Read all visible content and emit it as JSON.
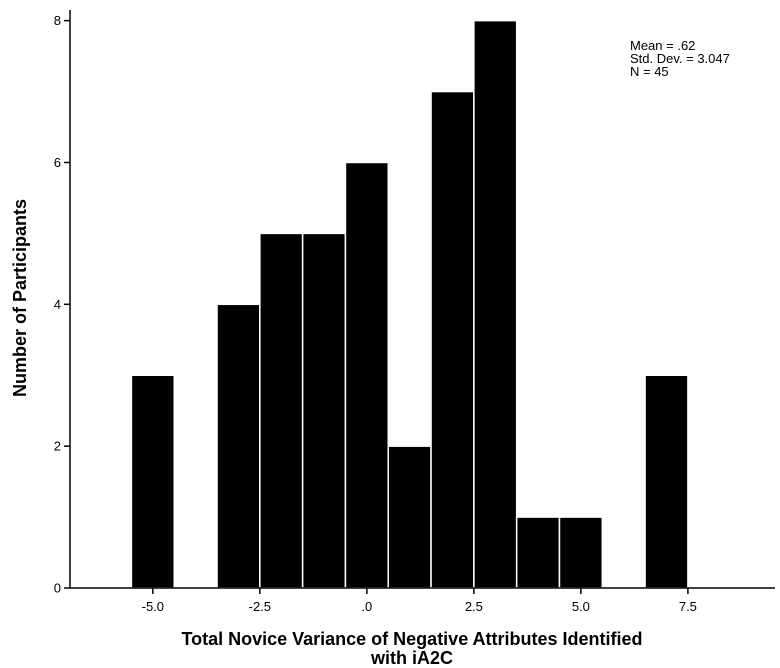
{
  "chart_data": {
    "type": "bar",
    "subtype": "histogram",
    "title": "",
    "xlabel_line1": "Total Novice Variance of Negative Attributes Identified",
    "xlabel_line2": "with iA2C",
    "ylabel": "Number of Participants",
    "bin_width": 1,
    "bins": [
      {
        "start": -5.5,
        "end": -4.5,
        "count": 3
      },
      {
        "start": -3.5,
        "end": -2.5,
        "count": 4
      },
      {
        "start": -2.5,
        "end": -1.5,
        "count": 5
      },
      {
        "start": -1.5,
        "end": -0.5,
        "count": 5
      },
      {
        "start": -0.5,
        "end": 0.5,
        "count": 6
      },
      {
        "start": 0.5,
        "end": 1.5,
        "count": 2
      },
      {
        "start": 1.5,
        "end": 2.5,
        "count": 7
      },
      {
        "start": 2.5,
        "end": 3.5,
        "count": 8
      },
      {
        "start": 3.5,
        "end": 4.5,
        "count": 1
      },
      {
        "start": 4.5,
        "end": 5.5,
        "count": 1
      },
      {
        "start": 6.5,
        "end": 7.5,
        "count": 3
      }
    ],
    "xlim": [
      -6.935,
      9.535
    ],
    "ylim": [
      0,
      8.15
    ],
    "x_ticks": [
      {
        "value": -5.0,
        "label": "-5.0"
      },
      {
        "value": -2.5,
        "label": "-2.5"
      },
      {
        "value": 0.0,
        "label": ".0"
      },
      {
        "value": 2.5,
        "label": "2.5"
      },
      {
        "value": 5.0,
        "label": "5.0"
      },
      {
        "value": 7.5,
        "label": "7.5"
      }
    ],
    "y_ticks": [
      {
        "value": 0,
        "label": "0"
      },
      {
        "value": 2,
        "label": "2"
      },
      {
        "value": 4,
        "label": "4"
      },
      {
        "value": 6,
        "label": "6"
      },
      {
        "value": 8,
        "label": "8"
      }
    ],
    "stats": [
      "Mean = .62",
      "Std. Dev. = 3.047",
      "N = 45"
    ],
    "grid": false,
    "legend": "none",
    "bar_color": "#000000",
    "bar_edge_color": "#ffffff"
  }
}
